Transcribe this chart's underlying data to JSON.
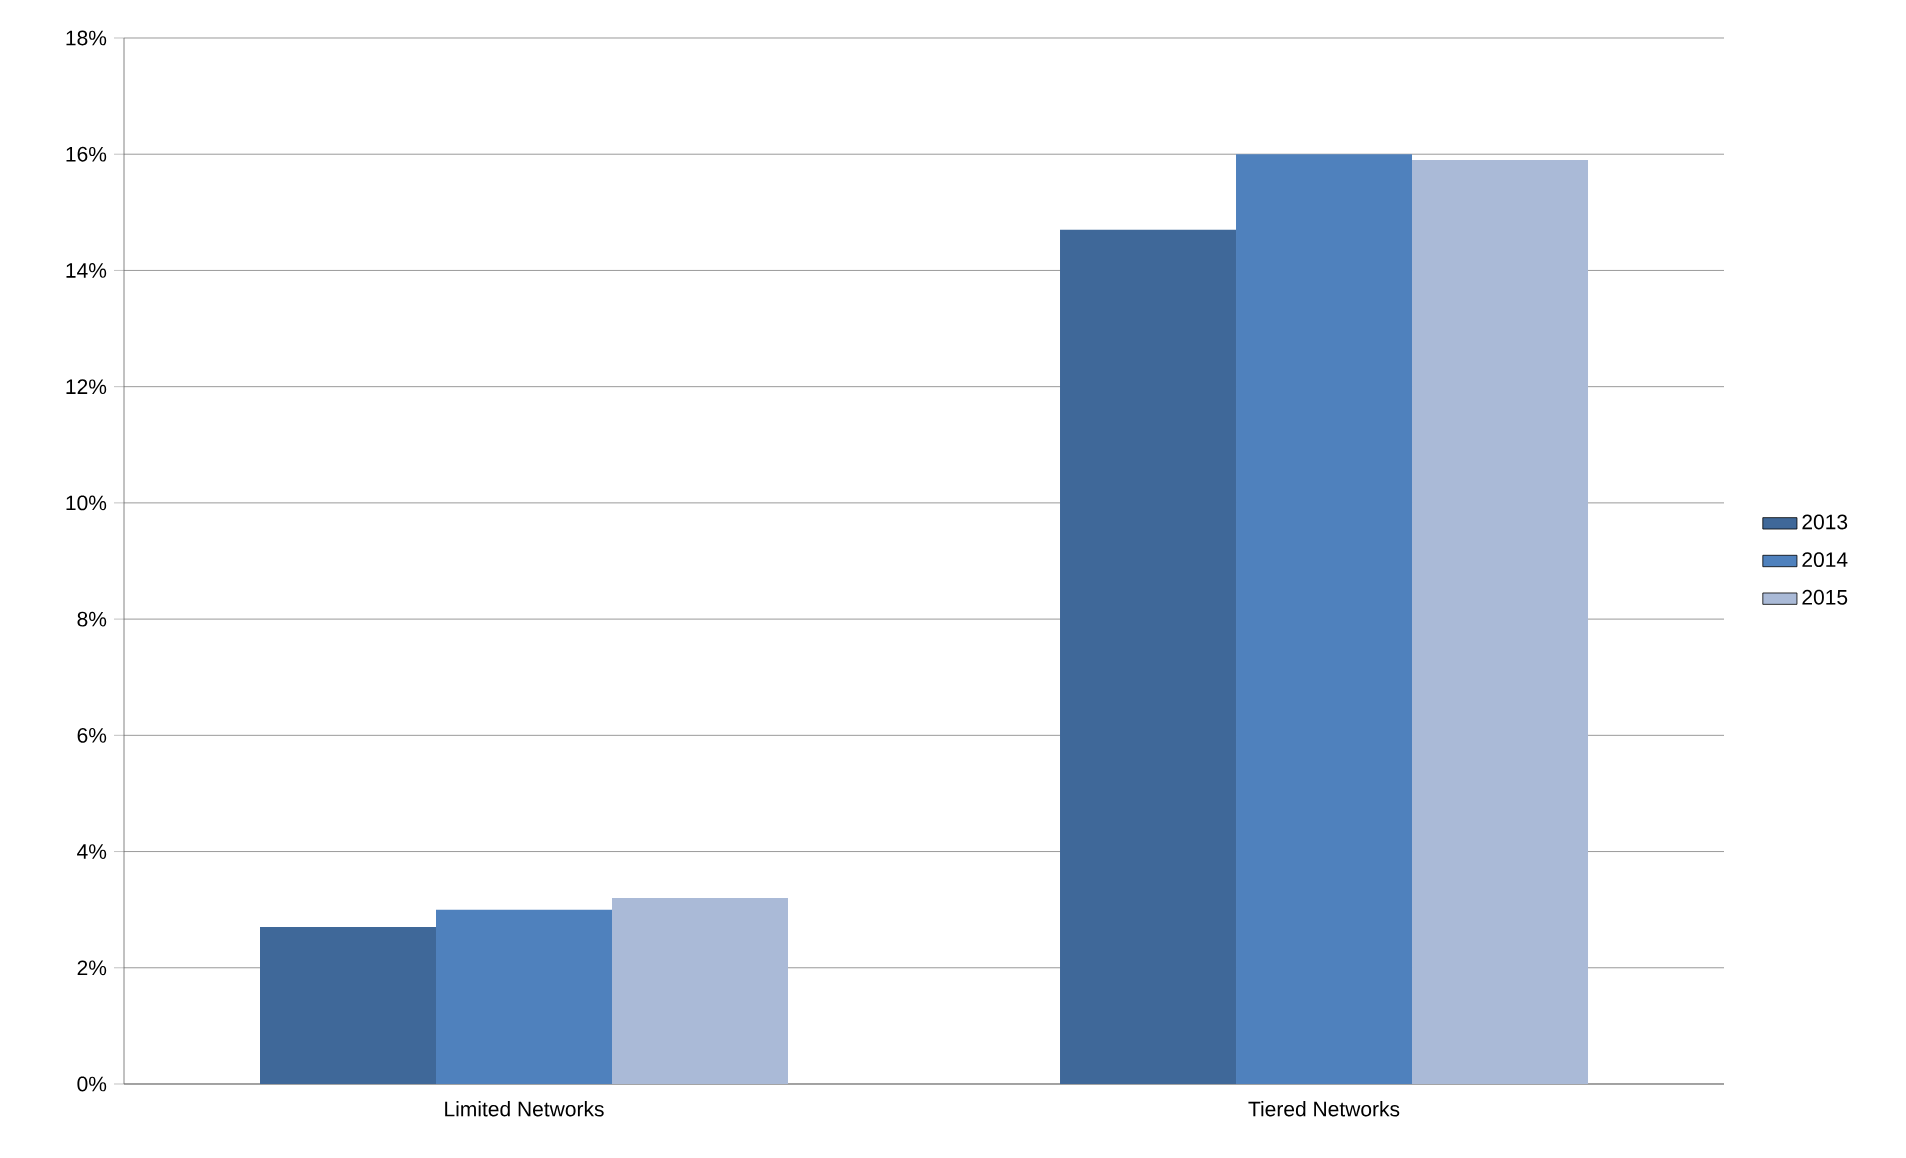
{
  "chart_data": {
    "type": "bar",
    "categories": [
      "Limited Networks",
      "Tiered Networks"
    ],
    "series": [
      {
        "name": "2013",
        "color": "#3f6899",
        "values": [
          2.7,
          14.7
        ]
      },
      {
        "name": "2014",
        "color": "#4f81bd",
        "values": [
          3.0,
          16.0
        ]
      },
      {
        "name": "2015",
        "color": "#aabad7",
        "values": [
          3.2,
          15.9
        ]
      }
    ],
    "ylim": [
      0,
      18
    ],
    "yticks": [
      {
        "value": 0,
        "label": "0%"
      },
      {
        "value": 2,
        "label": "2%"
      },
      {
        "value": 4,
        "label": "4%"
      },
      {
        "value": 6,
        "label": "6%"
      },
      {
        "value": 8,
        "label": "8%"
      },
      {
        "value": 10,
        "label": "10%"
      },
      {
        "value": 12,
        "label": "12%"
      },
      {
        "value": 14,
        "label": "14%"
      },
      {
        "value": 16,
        "label": "16%"
      },
      {
        "value": 18,
        "label": "18%"
      }
    ],
    "grid": "y",
    "legend": "right"
  }
}
